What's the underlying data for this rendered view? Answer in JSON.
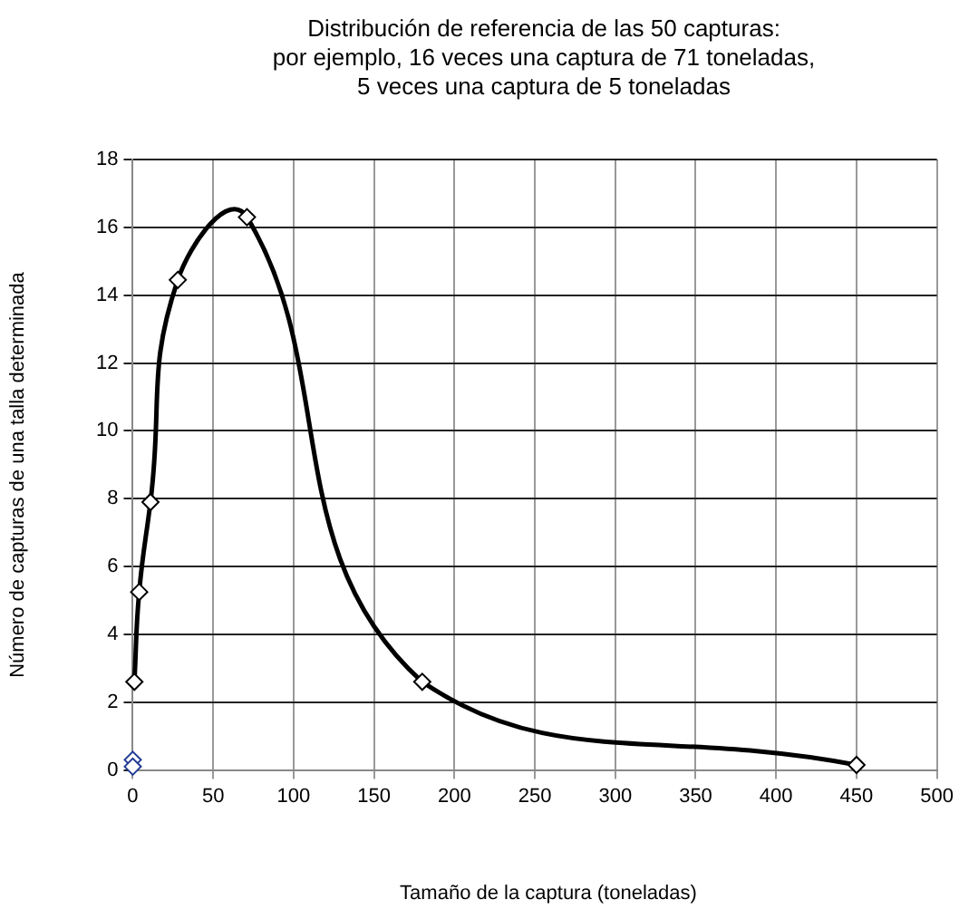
{
  "chart_data": {
    "type": "line",
    "title": "Distribución de referencia de las 50 capturas:\npor ejemplo, 16 veces una captura de 71 toneladas,\n5 veces una captura de 5 toneladas",
    "xlabel": "Tamaño de la captura (toneladas)",
    "ylabel": "Número de capturas  de una talla determinada",
    "series": [
      {
        "color": "#000000",
        "x": [
          1,
          4,
          11,
          28,
          71,
          180,
          450
        ],
        "values": [
          2.6,
          5.25,
          7.9,
          14.45,
          16.3,
          2.6,
          0.15
        ]
      },
      {
        "type": "scatter",
        "color": "#1f3a93",
        "x": [
          0,
          0
        ],
        "values": [
          0.3,
          0.1
        ]
      }
    ],
    "xlim": [
      0,
      500
    ],
    "xticks": [
      0,
      50,
      100,
      150,
      200,
      250,
      300,
      350,
      400,
      450,
      500
    ],
    "ylim": [
      0,
      18
    ],
    "yticks": [
      0,
      2,
      4,
      6,
      8,
      10,
      12,
      14,
      16,
      18
    ],
    "grid": true,
    "legend": false,
    "marker": "diamond",
    "line_style": "solid"
  }
}
